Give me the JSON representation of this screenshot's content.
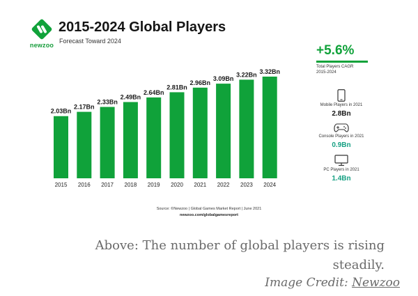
{
  "brand": {
    "logo_text": "newzoo",
    "color": "#10a23a"
  },
  "header": {
    "title": "2015-2024 Global Players",
    "subtitle": "Forecast Toward 2024"
  },
  "chart_data": {
    "type": "bar",
    "title": "2015-2024 Global Players",
    "subtitle": "Forecast Toward 2024",
    "categories": [
      "2015",
      "2016",
      "2017",
      "2018",
      "2019",
      "2020",
      "2021",
      "2022",
      "2023",
      "2024"
    ],
    "values": [
      2.03,
      2.17,
      2.33,
      2.49,
      2.64,
      2.81,
      2.96,
      3.09,
      3.22,
      3.32
    ],
    "data_labels": [
      "2.03Bn",
      "2.17Bn",
      "2.33Bn",
      "2.49Bn",
      "2.64Bn",
      "2.81Bn",
      "2.96Bn",
      "3.09Bn",
      "3.22Bn",
      "3.32Bn"
    ],
    "ylim": [
      0,
      3.32
    ],
    "grid": false,
    "bar_color": "#10a23a"
  },
  "sidebar": {
    "cagr_value": "+5.6%",
    "cagr_label": "Total Players CAGR",
    "cagr_period": "2015-2024",
    "stats": [
      {
        "icon": "mobile-phone-icon",
        "label": "Mobile Players in 2021",
        "value": "2.8Bn",
        "color": "#151515"
      },
      {
        "icon": "gamepad-icon",
        "label": "Console Players in 2021",
        "value": "0.9Bn",
        "color": "#16a083"
      },
      {
        "icon": "monitor-icon",
        "label": "PC Players in 2021",
        "value": "1.4Bn",
        "color": "#16a083"
      }
    ]
  },
  "footer": {
    "source": "Source: ©Newzoo | Global Games Market Report | June 2021",
    "url": "newzoo.com/globalgamesreport"
  },
  "caption": {
    "text": "Above: The number of global players is rising steadily.",
    "credit_prefix": "Image Credit: ",
    "credit_source": "Newzoo"
  }
}
